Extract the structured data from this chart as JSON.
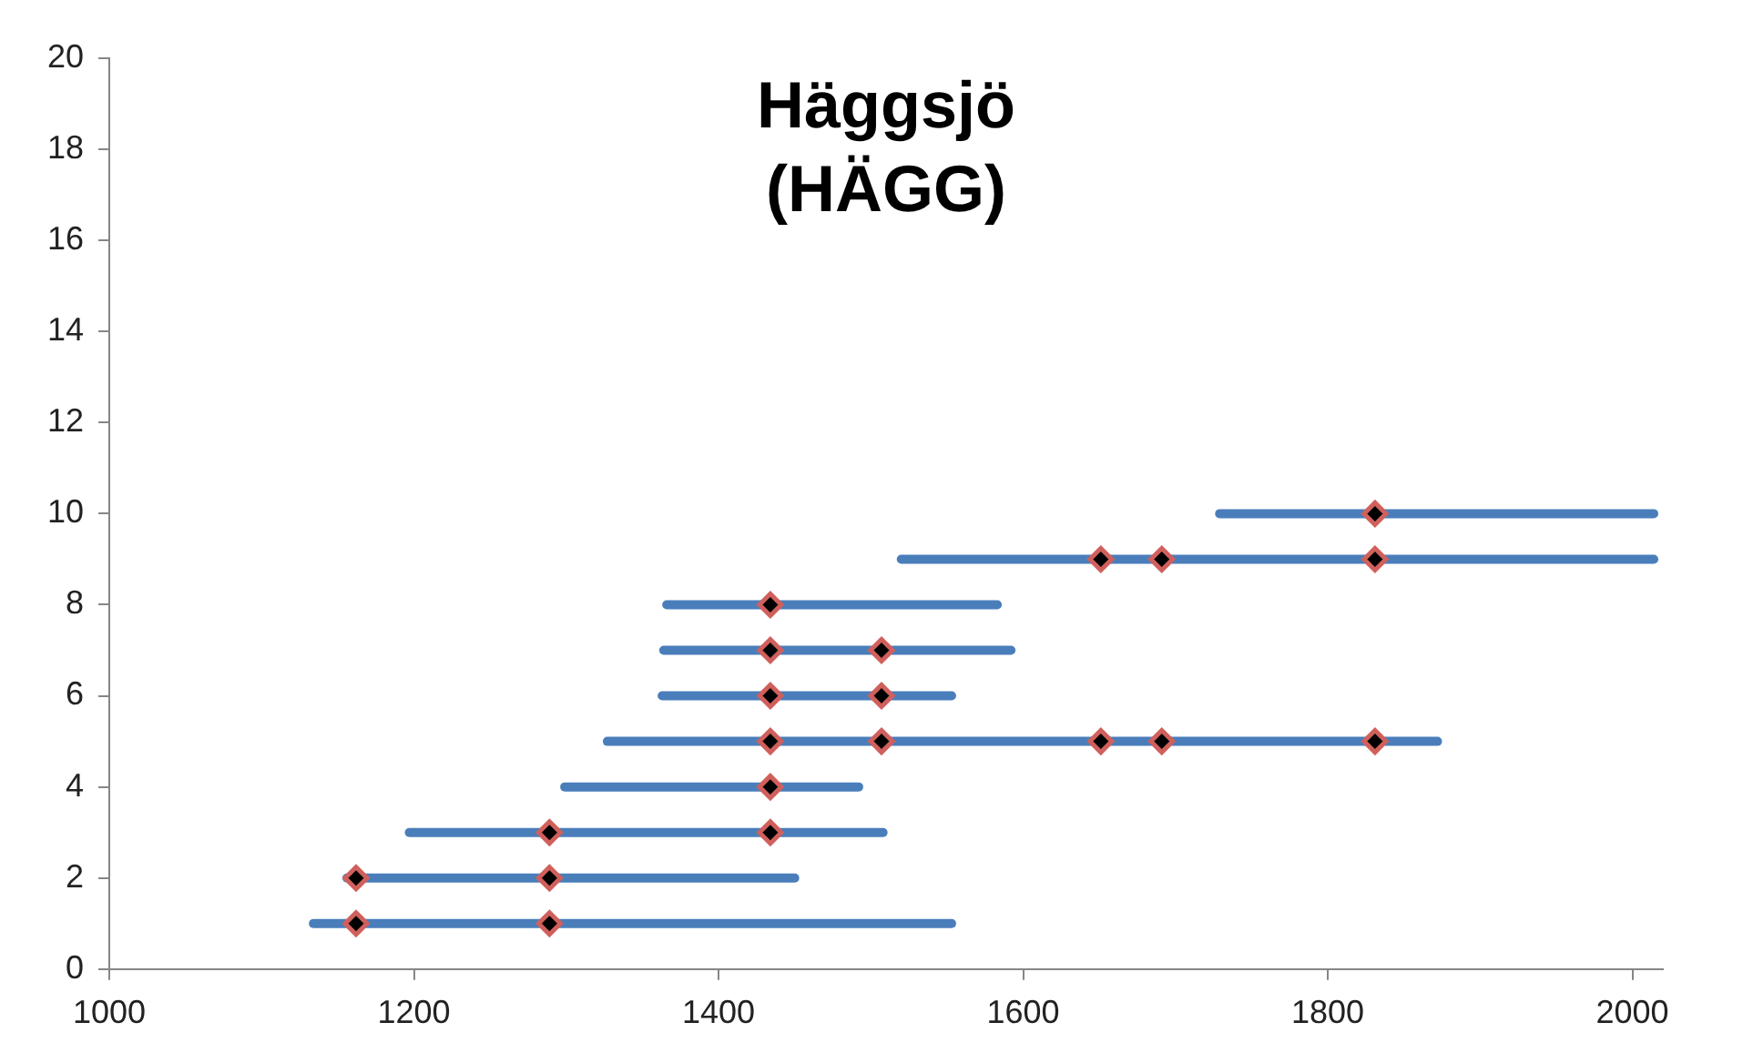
{
  "chart_data": {
    "type": "line",
    "title": "Häggsjö\n(HÄGG)",
    "xlim": [
      1000,
      2020
    ],
    "xticks": [
      1000,
      1200,
      1400,
      1600,
      1800,
      2000
    ],
    "ylim": [
      0,
      20
    ],
    "yticks": [
      0,
      2,
      4,
      6,
      8,
      10,
      12,
      14,
      16,
      18,
      20
    ],
    "grid": false,
    "legend": false,
    "line_style": "solid",
    "series": [
      {
        "color": "#4a7ebb",
        "x": [
          1134,
          1553
        ],
        "values": [
          1,
          1
        ]
      },
      {
        "color": "#4a7ebb",
        "x": [
          1156,
          1450
        ],
        "values": [
          2,
          2
        ]
      },
      {
        "color": "#4a7ebb",
        "x": [
          1197,
          1508
        ],
        "values": [
          3,
          3
        ]
      },
      {
        "color": "#4a7ebb",
        "x": [
          1299,
          1492
        ],
        "values": [
          4,
          4
        ]
      },
      {
        "color": "#4a7ebb",
        "x": [
          1327,
          1872
        ],
        "values": [
          5,
          5
        ]
      },
      {
        "color": "#4a7ebb",
        "x": [
          1363,
          1553
        ],
        "values": [
          6,
          6
        ]
      },
      {
        "color": "#4a7ebb",
        "x": [
          1364,
          1592
        ],
        "values": [
          7,
          7
        ]
      },
      {
        "color": "#4a7ebb",
        "x": [
          1366,
          1583
        ],
        "values": [
          8,
          8
        ]
      },
      {
        "color": "#4a7ebb",
        "x": [
          1520,
          2014
        ],
        "values": [
          9,
          9
        ]
      },
      {
        "color": "#4a7ebb",
        "x": [
          1729,
          2014
        ],
        "values": [
          10,
          10
        ]
      },
      {
        "type": "scatter",
        "color": "#000000",
        "marker": "diamond",
        "x": [
          1162,
          1289,
          1162,
          1289,
          1289,
          1434,
          1434,
          1434,
          1507,
          1651,
          1691,
          1831,
          1434,
          1507,
          1434,
          1507,
          1434,
          1651,
          1691,
          1831,
          1831
        ],
        "values": [
          1,
          1,
          2,
          2,
          3,
          3,
          4,
          5,
          5,
          5,
          5,
          5,
          6,
          6,
          7,
          7,
          8,
          9,
          9,
          9,
          10
        ]
      }
    ]
  }
}
